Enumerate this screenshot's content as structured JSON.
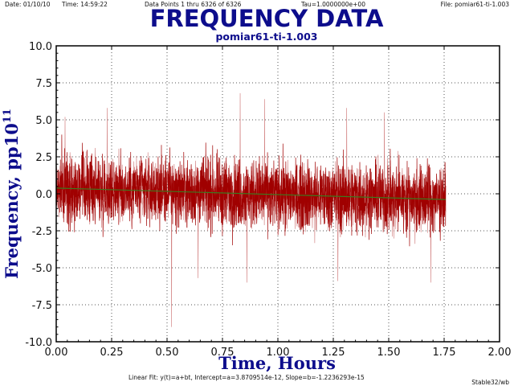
{
  "header": {
    "date_text": "Date: 01/10/10",
    "time_text": "Time: 14:59:22",
    "points_text": "Data Points 1 thru 6326 of 6326",
    "tau_text": "Tau=1.0000000e+00",
    "file_text": "File: pomiar61-ti-1.003"
  },
  "footer": {
    "fit_text": "Linear Fit: y(t)=a+bt, Intercept=a=3.8709514e-12, Slope=b=-1.2236293e-15",
    "app_text": "Stable32/wb"
  },
  "colors": {
    "title": "#0d0d8c",
    "data_series": "#a00000",
    "data_series_light": "#c86464",
    "fit_line": "#3c7a1e",
    "axes": "#000000"
  },
  "chart_data": {
    "type": "line",
    "title": "FREQUENCY DATA",
    "subtitle": "pomiar61-ti-1.003",
    "xlabel": "Time, Hours",
    "ylabel": "Frequency, pp10",
    "ylabel_superscript": "11",
    "xlim": [
      0,
      2
    ],
    "ylim": [
      -10,
      10
    ],
    "xticks": [
      0,
      0.25,
      0.5,
      0.75,
      1,
      1.25,
      1.5,
      1.75,
      2
    ],
    "xtick_labels": [
      "0.00",
      "0.25",
      "0.50",
      "0.75",
      "1.00",
      "1.25",
      "1.50",
      "1.75",
      "2.00"
    ],
    "yticks": [
      10,
      7.5,
      5,
      2.5,
      0,
      -2.5,
      -5,
      -7.5,
      -10
    ],
    "ytick_labels": [
      "10.0",
      "7.5",
      "5.0",
      "2.5",
      "0.0",
      "-2.5",
      "-5.0",
      "-7.5",
      "-10.0"
    ],
    "grid": true,
    "series": [
      {
        "kind": "frequency-data",
        "n_points": 6326,
        "x_range": [
          0,
          1.757
        ],
        "typical_envelope": [
          -3.0,
          3.0
        ],
        "extremes": [
          {
            "x": 0.52,
            "y": -9.0
          },
          {
            "x": 0.83,
            "y": 6.8
          },
          {
            "x": 0.94,
            "y": 6.4
          },
          {
            "x": 1.31,
            "y": 5.8
          },
          {
            "x": 1.48,
            "y": 5.5
          },
          {
            "x": 0.86,
            "y": -6.0
          },
          {
            "x": 1.27,
            "y": -5.9
          },
          {
            "x": 1.69,
            "y": -6.0
          },
          {
            "x": 0.23,
            "y": 5.8
          },
          {
            "x": 0.04,
            "y": 5.2
          },
          {
            "x": 0.64,
            "y": -5.7
          }
        ]
      },
      {
        "kind": "linear-fit",
        "points": [
          {
            "x": 0,
            "y": 0.387
          },
          {
            "x": 1.757,
            "y": -0.387
          }
        ]
      }
    ]
  }
}
